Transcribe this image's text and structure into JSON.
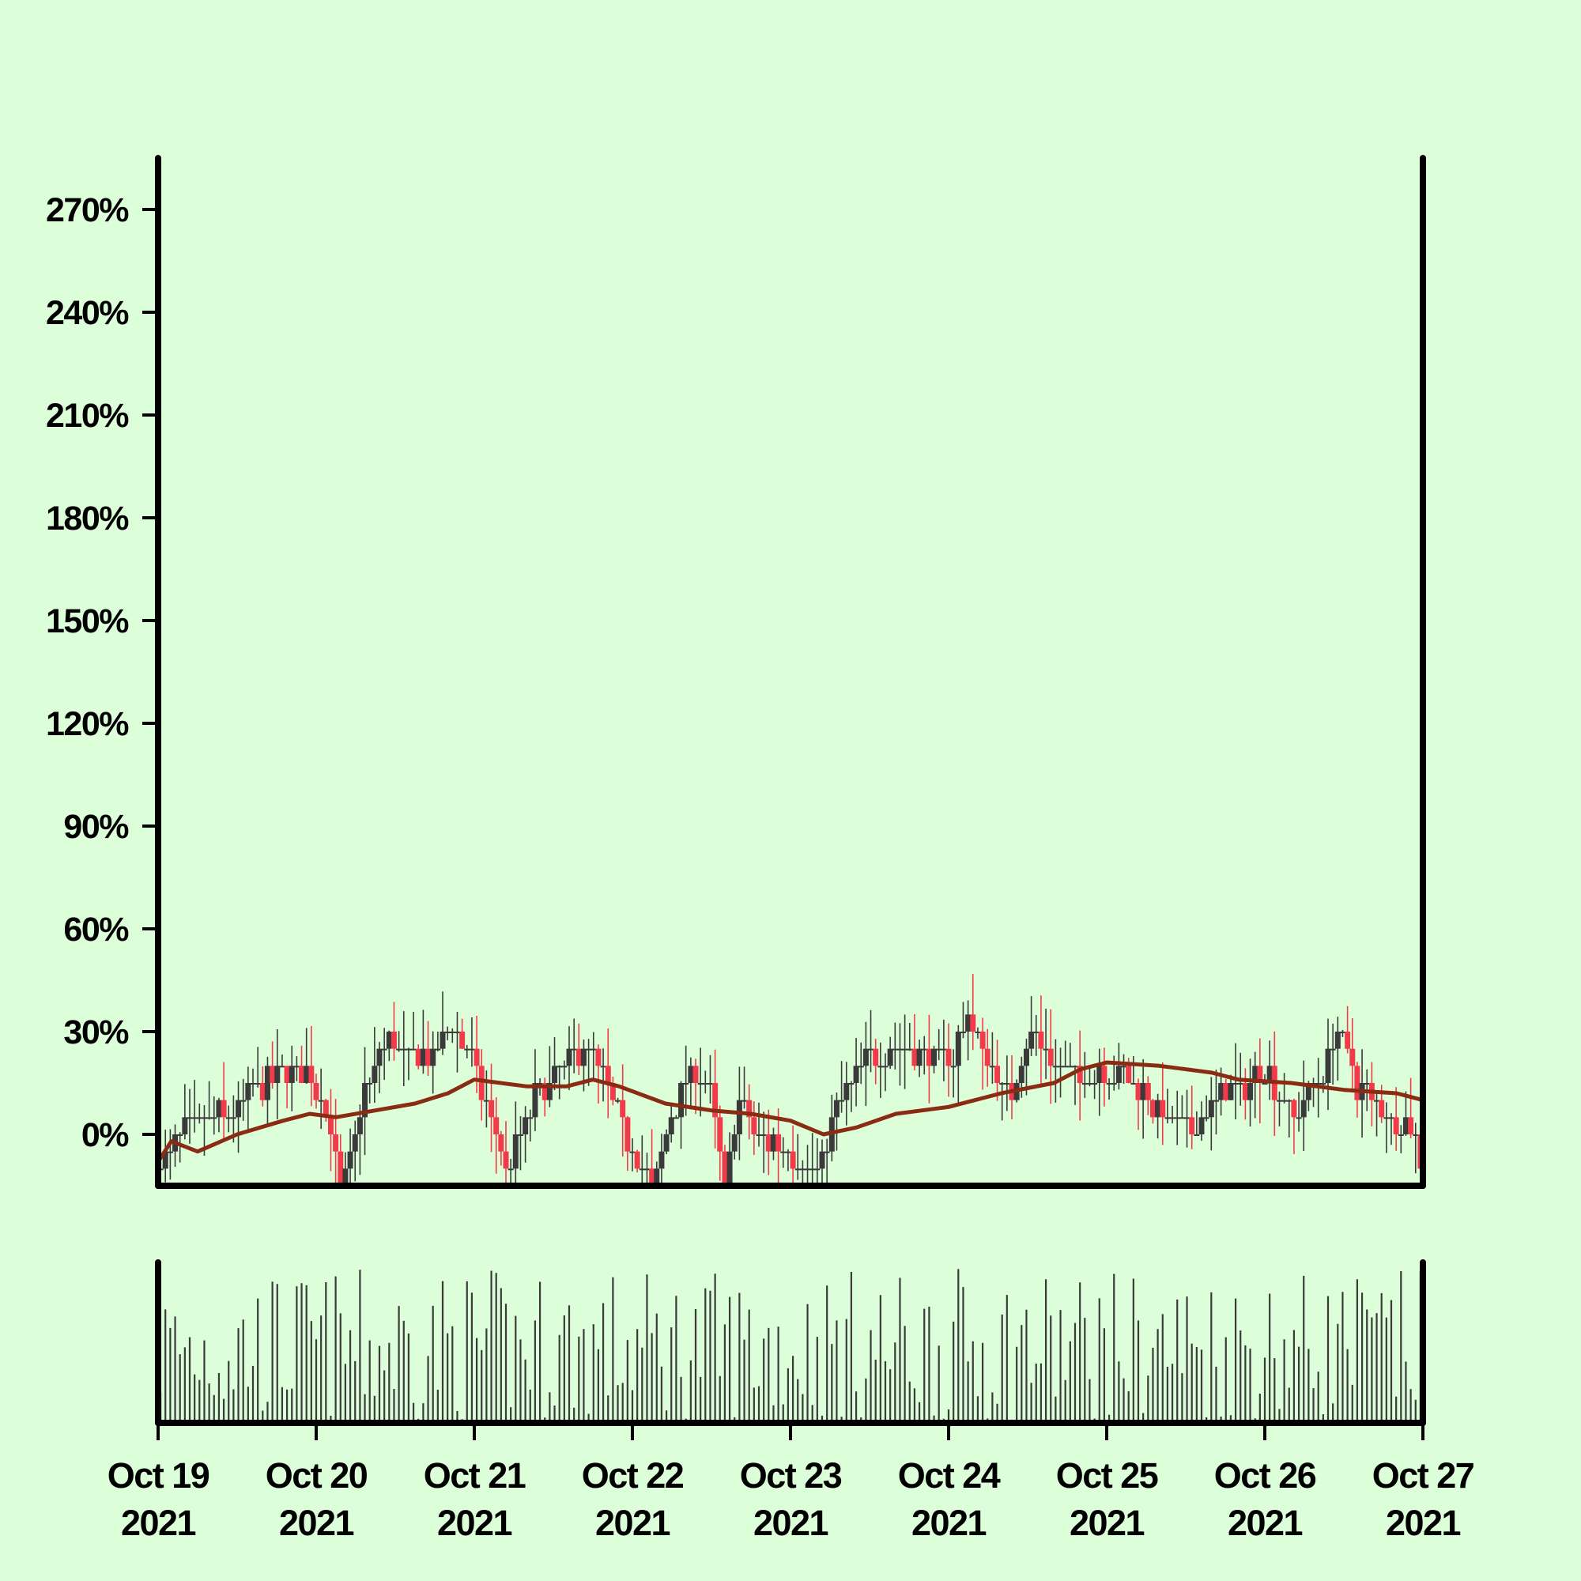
{
  "chart_data": {
    "type": "candlestick",
    "title": "",
    "xlabel": "",
    "ylabel": "",
    "ylim": [
      -15,
      285
    ],
    "y_tick_values": [
      0,
      30,
      60,
      90,
      120,
      150,
      180,
      210,
      240,
      270
    ],
    "y_tick_labels": [
      "0%",
      "30%",
      "60%",
      "90%",
      "120%",
      "150%",
      "180%",
      "210%",
      "240%",
      "270%"
    ],
    "x_range": [
      "2021-10-19",
      "2021-10-27"
    ],
    "x_tick_labels": [
      {
        "date": "2021-10-19",
        "line1": "Oct 19",
        "line2": "2021"
      },
      {
        "date": "2021-10-20",
        "line1": "Oct 20",
        "line2": "2021"
      },
      {
        "date": "2021-10-21",
        "line1": "Oct 21",
        "line2": "2021"
      },
      {
        "date": "2021-10-22",
        "line1": "Oct 22",
        "line2": "2021"
      },
      {
        "date": "2021-10-23",
        "line1": "Oct 23",
        "line2": "2021"
      },
      {
        "date": "2021-10-24",
        "line1": "Oct 24",
        "line2": "2021"
      },
      {
        "date": "2021-10-25",
        "line1": "Oct 25",
        "line2": "2021"
      },
      {
        "date": "2021-10-26",
        "line1": "Oct 26",
        "line2": "2021"
      },
      {
        "date": "2021-10-27",
        "line1": "Oct 27",
        "line2": "2021"
      }
    ],
    "up_color": "#3a3a3a",
    "down_color": "#f23b4a",
    "ma_color": "#8a2c14",
    "volume_color": "#3a3a3a",
    "background": "#dcfed9",
    "grid": false,
    "price_path": [
      {
        "date": "2021-10-19T00:00",
        "close": -10
      },
      {
        "date": "2021-10-19T04:00",
        "close": 0
      },
      {
        "date": "2021-10-19T09:00",
        "close": 5
      },
      {
        "date": "2021-10-19T14:00",
        "close": 12
      },
      {
        "date": "2021-10-19T19:00",
        "close": 20
      },
      {
        "date": "2021-10-19T23:00",
        "close": 18
      },
      {
        "date": "2021-10-20T02:00",
        "close": 5
      },
      {
        "date": "2021-10-20T04:00",
        "close": -18
      },
      {
        "date": "2021-10-20T07:00",
        "close": 10
      },
      {
        "date": "2021-10-20T11:00",
        "close": 30
      },
      {
        "date": "2021-10-20T14:00",
        "close": 22
      },
      {
        "date": "2021-10-20T18:00",
        "close": 22
      },
      {
        "date": "2021-10-20T21:00",
        "close": 33
      },
      {
        "date": "2021-10-21T00:00",
        "close": 20
      },
      {
        "date": "2021-10-21T03:00",
        "close": 0
      },
      {
        "date": "2021-10-21T05:00",
        "close": -10
      },
      {
        "date": "2021-10-21T09:00",
        "close": 10
      },
      {
        "date": "2021-10-21T14:00",
        "close": 20
      },
      {
        "date": "2021-10-21T17:00",
        "close": 25
      },
      {
        "date": "2021-10-21T20:00",
        "close": 15
      },
      {
        "date": "2021-10-22T00:00",
        "close": -5
      },
      {
        "date": "2021-10-22T03:00",
        "close": -15
      },
      {
        "date": "2021-10-22T06:00",
        "close": 5
      },
      {
        "date": "2021-10-22T09:00",
        "close": 20
      },
      {
        "date": "2021-10-22T12:00",
        "close": 10
      },
      {
        "date": "2021-10-22T14:00",
        "close": -18
      },
      {
        "date": "2021-10-22T16:00",
        "close": 12
      },
      {
        "date": "2021-10-22T19:00",
        "close": 0
      },
      {
        "date": "2021-10-23T00:00",
        "close": -5
      },
      {
        "date": "2021-10-23T04:00",
        "close": -12
      },
      {
        "date": "2021-10-23T07:00",
        "close": 10
      },
      {
        "date": "2021-10-23T11:00",
        "close": 20
      },
      {
        "date": "2021-10-23T16:00",
        "close": 25
      },
      {
        "date": "2021-10-23T20:00",
        "close": 25
      },
      {
        "date": "2021-10-24T00:00",
        "close": 20
      },
      {
        "date": "2021-10-24T03:00",
        "close": 35
      },
      {
        "date": "2021-10-24T06:00",
        "close": 20
      },
      {
        "date": "2021-10-24T09:00",
        "close": 10
      },
      {
        "date": "2021-10-24T13:00",
        "close": 30
      },
      {
        "date": "2021-10-24T16:00",
        "close": 20
      },
      {
        "date": "2021-10-24T20:00",
        "close": 15
      },
      {
        "date": "2021-10-25T00:00",
        "close": 20
      },
      {
        "date": "2021-10-25T04:00",
        "close": 15
      },
      {
        "date": "2021-10-25T09:00",
        "close": 5
      },
      {
        "date": "2021-10-25T13:00",
        "close": 0
      },
      {
        "date": "2021-10-25T17:00",
        "close": 10
      },
      {
        "date": "2021-10-25T21:00",
        "close": 15
      },
      {
        "date": "2021-10-26T00:00",
        "close": 20
      },
      {
        "date": "2021-10-26T04:00",
        "close": 5
      },
      {
        "date": "2021-10-26T08:00",
        "close": 15
      },
      {
        "date": "2021-10-26T11:00",
        "close": 30
      },
      {
        "date": "2021-10-26T14:00",
        "close": 15
      },
      {
        "date": "2021-10-26T19:00",
        "close": 5
      },
      {
        "date": "2021-10-26T23:00",
        "close": 0
      },
      {
        "date": "2021-10-27T00:00",
        "close": -13
      }
    ],
    "moving_average": [
      {
        "date": "2021-10-19T00:00",
        "value": -8
      },
      {
        "date": "2021-10-19T02:00",
        "value": -2
      },
      {
        "date": "2021-10-19T06:00",
        "value": -5
      },
      {
        "date": "2021-10-19T12:00",
        "value": 0
      },
      {
        "date": "2021-10-19T19:00",
        "value": 4
      },
      {
        "date": "2021-10-19T23:00",
        "value": 6
      },
      {
        "date": "2021-10-20T03:00",
        "value": 5
      },
      {
        "date": "2021-10-20T09:00",
        "value": 7
      },
      {
        "date": "2021-10-20T15:00",
        "value": 9
      },
      {
        "date": "2021-10-20T20:00",
        "value": 12
      },
      {
        "date": "2021-10-21T00:00",
        "value": 16
      },
      {
        "date": "2021-10-21T04:00",
        "value": 15
      },
      {
        "date": "2021-10-21T08:00",
        "value": 14
      },
      {
        "date": "2021-10-21T14:00",
        "value": 14
      },
      {
        "date": "2021-10-21T18:00",
        "value": 16
      },
      {
        "date": "2021-10-21T22:00",
        "value": 14
      },
      {
        "date": "2021-10-22T05:00",
        "value": 9
      },
      {
        "date": "2021-10-22T12:00",
        "value": 7
      },
      {
        "date": "2021-10-22T18:00",
        "value": 6
      },
      {
        "date": "2021-10-23T00:00",
        "value": 4
      },
      {
        "date": "2021-10-23T05:00",
        "value": 0
      },
      {
        "date": "2021-10-23T10:00",
        "value": 2
      },
      {
        "date": "2021-10-23T16:00",
        "value": 6
      },
      {
        "date": "2021-10-24T00:00",
        "value": 8
      },
      {
        "date": "2021-10-24T08:00",
        "value": 12
      },
      {
        "date": "2021-10-24T16:00",
        "value": 15
      },
      {
        "date": "2021-10-24T20:00",
        "value": 19
      },
      {
        "date": "2021-10-25T00:00",
        "value": 21
      },
      {
        "date": "2021-10-25T08:00",
        "value": 20
      },
      {
        "date": "2021-10-25T16:00",
        "value": 18
      },
      {
        "date": "2021-10-25T20:00",
        "value": 16
      },
      {
        "date": "2021-10-26T04:00",
        "value": 15
      },
      {
        "date": "2021-10-26T12:00",
        "value": 13
      },
      {
        "date": "2021-10-26T20:00",
        "value": 12
      },
      {
        "date": "2021-10-27T00:00",
        "value": 10
      }
    ]
  }
}
